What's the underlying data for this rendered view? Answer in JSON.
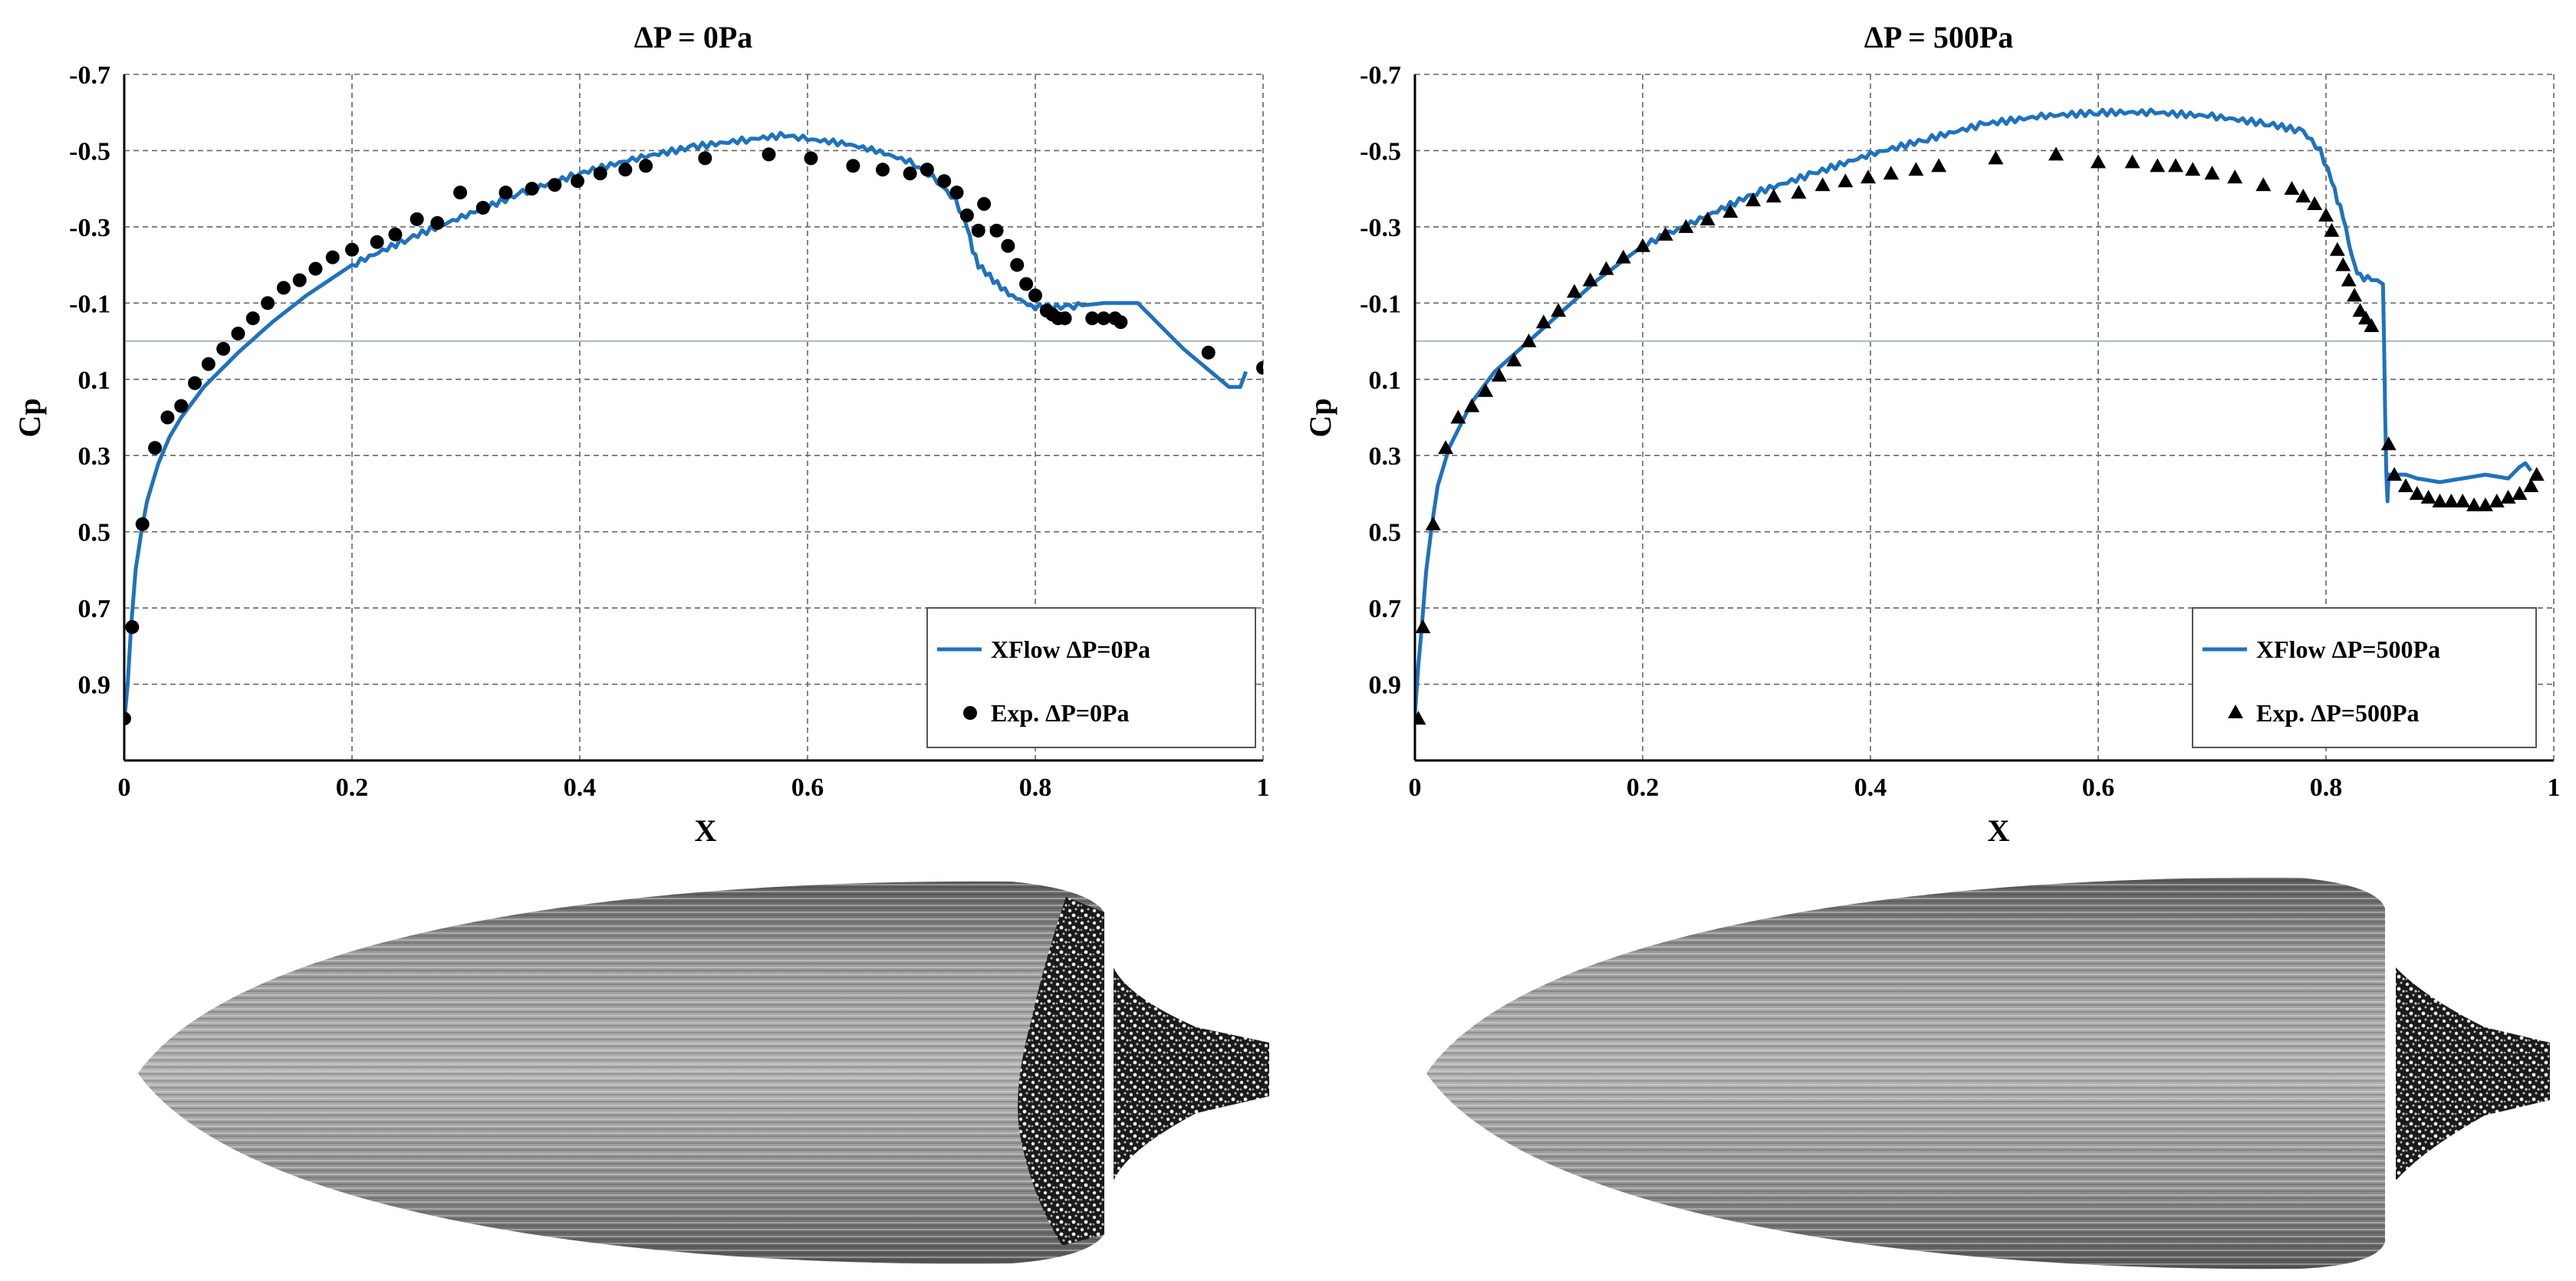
{
  "colors": {
    "sim": "#1f72bd",
    "exp": "#000000",
    "grid": "#666666",
    "zero": "#a9bcc9"
  },
  "chart_data": [
    {
      "type": "line",
      "title": "ΔP = 0Pa",
      "xlabel": "X",
      "ylabel": "Cp",
      "xlim": [
        0,
        1
      ],
      "ylim": [
        -0.7,
        1.1
      ],
      "y_inverted": true,
      "grid": true,
      "legend_position": "bottom-right",
      "x_ticks": [
        "0",
        "0.2",
        "0.4",
        "0.6",
        "0.8",
        "1"
      ],
      "y_ticks": [
        "-0.7",
        "-0.5",
        "-0.3",
        "-0.1",
        "0.1",
        "0.3",
        "0.5",
        "0.7",
        "0.9"
      ],
      "series": [
        {
          "name": "XFlow ΔP=0Pa",
          "marker": "line",
          "x": [
            0.0,
            0.003,
            0.006,
            0.01,
            0.015,
            0.02,
            0.03,
            0.04,
            0.05,
            0.07,
            0.1,
            0.13,
            0.16,
            0.2,
            0.25,
            0.3,
            0.35,
            0.4,
            0.45,
            0.5,
            0.55,
            0.58,
            0.6,
            0.63,
            0.66,
            0.69,
            0.71,
            0.73,
            0.74,
            0.745,
            0.75,
            0.76,
            0.77,
            0.78,
            0.79,
            0.8,
            0.83,
            0.86,
            0.89,
            0.9,
            0.91,
            0.93,
            0.95,
            0.97,
            0.98,
            0.985
          ],
          "y": [
            1.0,
            0.9,
            0.75,
            0.6,
            0.5,
            0.42,
            0.32,
            0.25,
            0.2,
            0.12,
            0.03,
            -0.05,
            -0.12,
            -0.2,
            -0.27,
            -0.33,
            -0.39,
            -0.44,
            -0.48,
            -0.51,
            -0.53,
            -0.54,
            -0.53,
            -0.52,
            -0.5,
            -0.47,
            -0.43,
            -0.37,
            -0.3,
            -0.24,
            -0.2,
            -0.17,
            -0.14,
            -0.12,
            -0.1,
            -0.09,
            -0.09,
            -0.1,
            -0.1,
            -0.07,
            -0.04,
            0.02,
            0.07,
            0.12,
            0.12,
            0.08
          ]
        },
        {
          "name": "Exp. ΔP=0Pa",
          "marker": "circle",
          "x": [
            0.0,
            0.007,
            0.016,
            0.027,
            0.038,
            0.05,
            0.062,
            0.074,
            0.087,
            0.1,
            0.113,
            0.126,
            0.14,
            0.154,
            0.168,
            0.183,
            0.2,
            0.222,
            0.238,
            0.257,
            0.275,
            0.295,
            0.315,
            0.335,
            0.358,
            0.378,
            0.398,
            0.418,
            0.44,
            0.458,
            0.51,
            0.566,
            0.603,
            0.64,
            0.666,
            0.69,
            0.705,
            0.72,
            0.731,
            0.74,
            0.75,
            0.755,
            0.766,
            0.776,
            0.784,
            0.792,
            0.8,
            0.81,
            0.815,
            0.82,
            0.826,
            0.85,
            0.86,
            0.87,
            0.875,
            0.952,
            1.0
          ],
          "y": [
            0.99,
            0.75,
            0.48,
            0.28,
            0.2,
            0.17,
            0.11,
            0.06,
            0.02,
            -0.02,
            -0.06,
            -0.1,
            -0.14,
            -0.16,
            -0.19,
            -0.22,
            -0.24,
            -0.26,
            -0.28,
            -0.32,
            -0.31,
            -0.39,
            -0.35,
            -0.39,
            -0.4,
            -0.41,
            -0.42,
            -0.44,
            -0.45,
            -0.46,
            -0.48,
            -0.49,
            -0.48,
            -0.46,
            -0.45,
            -0.44,
            -0.45,
            -0.42,
            -0.39,
            -0.33,
            -0.29,
            -0.36,
            -0.29,
            -0.25,
            -0.2,
            -0.15,
            -0.12,
            -0.08,
            -0.07,
            -0.06,
            -0.06,
            -0.06,
            -0.06,
            -0.06,
            -0.05,
            0.03,
            0.07
          ]
        }
      ]
    },
    {
      "type": "line",
      "title": "ΔP = 500Pa",
      "xlabel": "X",
      "ylabel": "Cp",
      "xlim": [
        0,
        1
      ],
      "ylim": [
        -0.7,
        1.1
      ],
      "y_inverted": true,
      "grid": true,
      "legend_position": "bottom-right",
      "x_ticks": [
        "0",
        "0.2",
        "0.4",
        "0.6",
        "0.8",
        "1"
      ],
      "y_ticks": [
        "-0.7",
        "-0.5",
        "-0.3",
        "-0.1",
        "0.1",
        "0.3",
        "0.5",
        "0.7",
        "0.9"
      ],
      "series": [
        {
          "name": "XFlow ΔP=500Pa",
          "marker": "line",
          "x": [
            0.0,
            0.003,
            0.006,
            0.01,
            0.015,
            0.02,
            0.03,
            0.05,
            0.07,
            0.1,
            0.13,
            0.16,
            0.2,
            0.25,
            0.3,
            0.35,
            0.4,
            0.45,
            0.5,
            0.55,
            0.6,
            0.65,
            0.7,
            0.75,
            0.78,
            0.795,
            0.805,
            0.81,
            0.815,
            0.82,
            0.825,
            0.83,
            0.84,
            0.845,
            0.85,
            0.851,
            0.852,
            0.853,
            0.854,
            0.855,
            0.86,
            0.87,
            0.88,
            0.9,
            0.92,
            0.94,
            0.96,
            0.97,
            0.975,
            0.98
          ],
          "y": [
            0.98,
            0.85,
            0.75,
            0.6,
            0.48,
            0.38,
            0.28,
            0.16,
            0.08,
            0.0,
            -0.08,
            -0.16,
            -0.25,
            -0.32,
            -0.39,
            -0.44,
            -0.49,
            -0.53,
            -0.57,
            -0.59,
            -0.6,
            -0.6,
            -0.59,
            -0.57,
            -0.55,
            -0.5,
            -0.42,
            -0.37,
            -0.33,
            -0.26,
            -0.2,
            -0.17,
            -0.16,
            -0.16,
            -0.15,
            0.0,
            0.2,
            0.35,
            0.42,
            0.35,
            0.35,
            0.35,
            0.36,
            0.37,
            0.36,
            0.35,
            0.36,
            0.33,
            0.32,
            0.34
          ]
        },
        {
          "name": "Exp. ΔP=500Pa",
          "marker": "triangle",
          "x": [
            0.003,
            0.007,
            0.016,
            0.027,
            0.038,
            0.05,
            0.062,
            0.074,
            0.087,
            0.1,
            0.113,
            0.126,
            0.14,
            0.154,
            0.168,
            0.183,
            0.2,
            0.22,
            0.238,
            0.257,
            0.277,
            0.297,
            0.315,
            0.337,
            0.358,
            0.378,
            0.398,
            0.418,
            0.44,
            0.46,
            0.51,
            0.563,
            0.6,
            0.63,
            0.652,
            0.668,
            0.683,
            0.7,
            0.72,
            0.745,
            0.77,
            0.78,
            0.79,
            0.8,
            0.805,
            0.81,
            0.815,
            0.82,
            0.825,
            0.83,
            0.835,
            0.84,
            0.855,
            0.86,
            0.87,
            0.88,
            0.89,
            0.9,
            0.91,
            0.92,
            0.93,
            0.94,
            0.95,
            0.96,
            0.97,
            0.98,
            0.985
          ],
          "y": [
            0.99,
            0.75,
            0.48,
            0.28,
            0.2,
            0.17,
            0.13,
            0.09,
            0.05,
            0.0,
            -0.05,
            -0.08,
            -0.13,
            -0.16,
            -0.19,
            -0.22,
            -0.25,
            -0.28,
            -0.3,
            -0.32,
            -0.34,
            -0.37,
            -0.38,
            -0.39,
            -0.41,
            -0.42,
            -0.43,
            -0.44,
            -0.45,
            -0.46,
            -0.48,
            -0.49,
            -0.47,
            -0.47,
            -0.46,
            -0.46,
            -0.45,
            -0.44,
            -0.43,
            -0.41,
            -0.4,
            -0.38,
            -0.36,
            -0.33,
            -0.29,
            -0.24,
            -0.2,
            -0.16,
            -0.12,
            -0.08,
            -0.06,
            -0.04,
            0.27,
            0.35,
            0.38,
            0.4,
            0.41,
            0.42,
            0.42,
            0.42,
            0.43,
            0.43,
            0.42,
            0.41,
            0.4,
            0.38,
            0.35
          ]
        }
      ]
    }
  ]
}
